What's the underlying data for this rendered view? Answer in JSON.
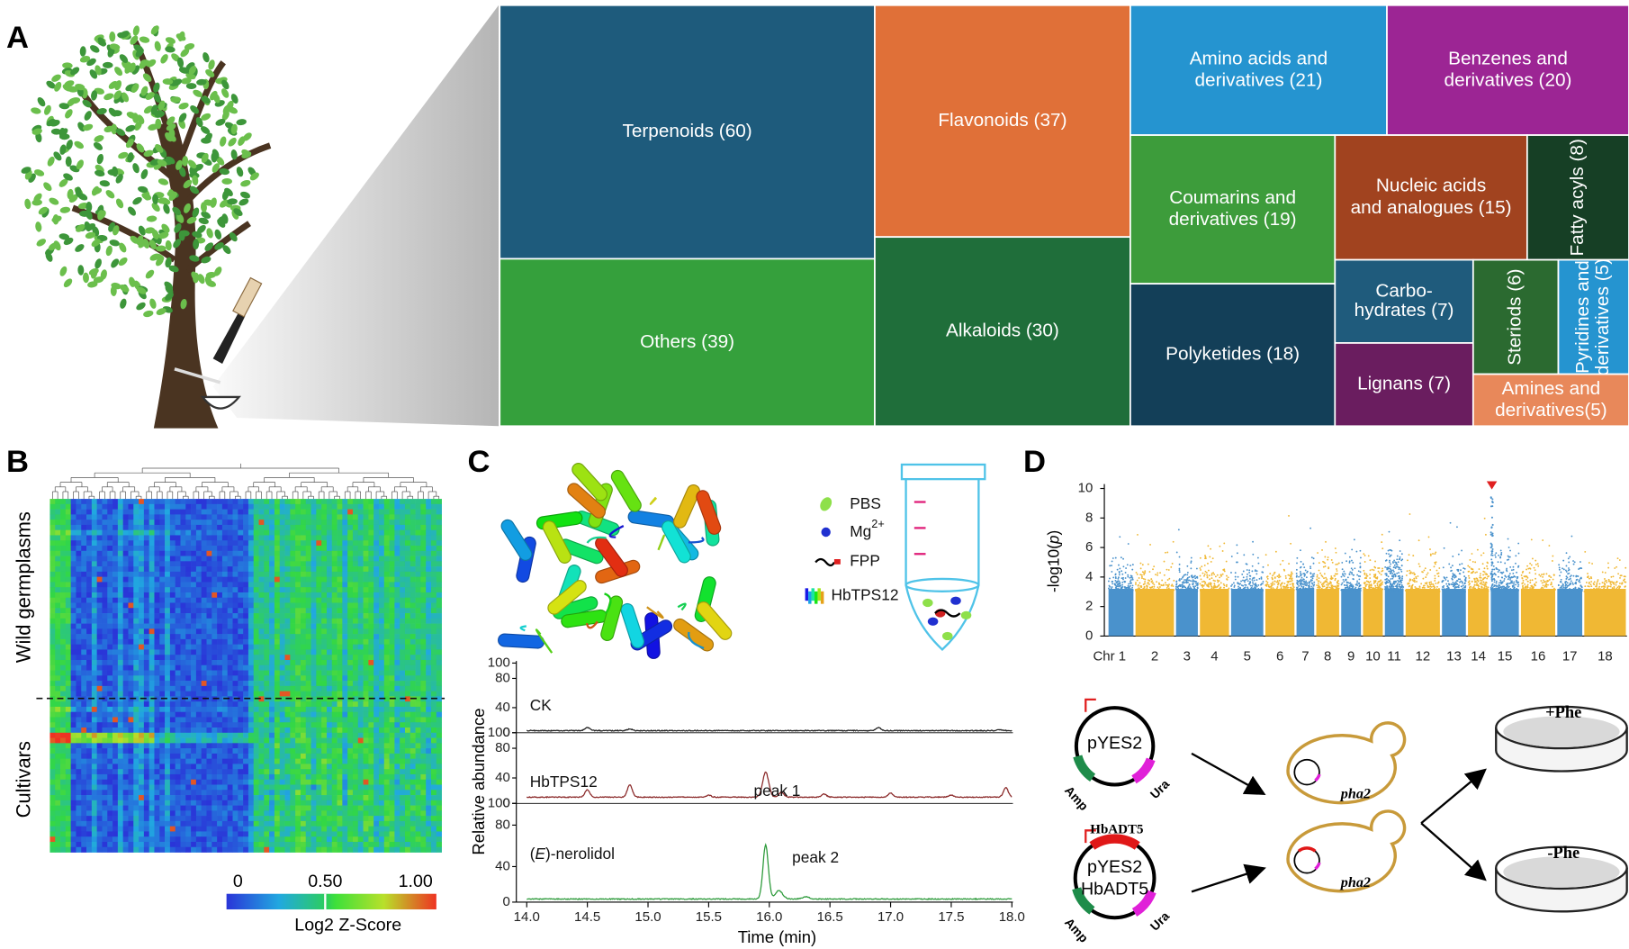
{
  "panels": [
    "A",
    "B",
    "C",
    "D"
  ],
  "treemap": [
    {
      "lines": [
        "Terpenoids (60)"
      ]
    },
    {
      "lines": [
        "Others (39)"
      ]
    },
    {
      "lines": [
        "Flavonoids (37)"
      ]
    },
    {
      "lines": [
        "Alkaloids (30)"
      ]
    },
    {
      "lines": [
        "Amino acids and",
        "derivatives (21)"
      ]
    },
    {
      "lines": [
        "Benzenes and",
        "derivatives (20)"
      ]
    },
    {
      "lines": [
        "Coumarins and",
        "derivatives (19)"
      ]
    },
    {
      "lines": [
        "Polyketides (18)"
      ]
    },
    {
      "lines": [
        "Nucleic acids",
        "and analogues (15)"
      ]
    },
    {
      "lines": [
        "Fatty acyls (8)"
      ]
    },
    {
      "lines": [
        "Carbo-",
        "hydrates (7)"
      ]
    },
    {
      "lines": [
        "Lignans (7)"
      ]
    },
    {
      "lines": [
        "Steriods (6)"
      ]
    },
    {
      "lines": [
        "Pyridines and",
        "derivatives (5)"
      ]
    },
    {
      "lines": [
        "Amines  and",
        "derivatives(5)"
      ]
    }
  ],
  "heatmap": {
    "row_groups": [
      "Wild germplasms",
      "Cultivars"
    ],
    "colorbar_ticks": [
      "0",
      "0.50",
      "1.00"
    ],
    "colorbar_label": "Log2 Z-Score"
  },
  "assay": {
    "legend": [
      {
        "text": "PBS"
      },
      {
        "text": "Mg",
        "sup": "2+"
      },
      {
        "text": "FPP"
      },
      {
        "text": "HbTPS12"
      }
    ]
  },
  "chromatogram": {
    "y_label": "Relative abundance",
    "x_label": "Time (min)",
    "x_ticks": [
      "14.0",
      "14.5",
      "15.0",
      "15.5",
      "16.0",
      "16.5",
      "17.0",
      "17.5",
      "18.0"
    ],
    "y_ticks": [
      "100",
      "80",
      "40",
      "0"
    ],
    "traces": [
      {
        "name": [
          "CK"
        ]
      },
      {
        "name": [
          "HbTPS12"
        ],
        "peak": "peak 1"
      },
      {
        "name": [
          "(",
          "E",
          ")-nerolidol"
        ],
        "peak": "peak 2"
      }
    ]
  },
  "manhattan": {
    "y_label": [
      "-log10(",
      "p",
      ")"
    ],
    "y_ticks": [
      "0",
      "2",
      "4",
      "6",
      "8",
      "10"
    ],
    "chromosomes": [
      "Chr 1",
      "2",
      "3",
      "4",
      "5",
      "6",
      "7",
      "8",
      "9",
      "10",
      "11",
      "12",
      "13",
      "14",
      "15",
      "16",
      "17",
      "18"
    ]
  },
  "yeast": {
    "plasmid": "pYES2",
    "plasmid2": [
      "pYES2",
      "HbADT5"
    ],
    "insert": "HbADT5",
    "markers": [
      "Amp",
      "Ura"
    ],
    "strain": "pha2",
    "media": [
      "+Phe",
      "-Phe"
    ]
  }
}
